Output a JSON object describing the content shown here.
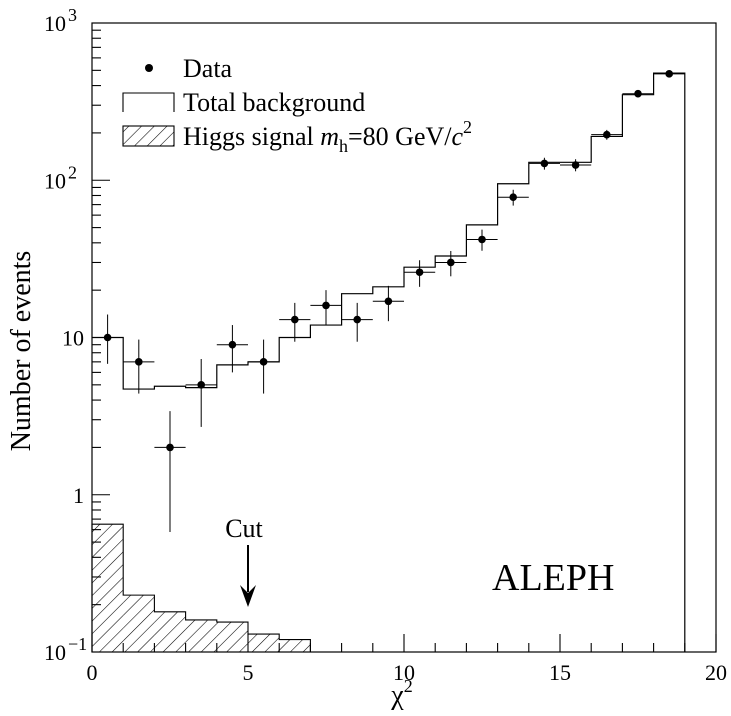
{
  "chart_data": {
    "type": "histogram",
    "title": "",
    "xlabel": "χ",
    "xlabel_sup": "2",
    "ylabel": "Number of events",
    "x_range": [
      0,
      20
    ],
    "y_range": [
      0.1,
      1000
    ],
    "y_scale": "log",
    "grid": false,
    "x_ticks": [
      {
        "v": 0,
        "label": "0"
      },
      {
        "v": 5,
        "label": "5"
      },
      {
        "v": 10,
        "label": "10"
      },
      {
        "v": 15,
        "label": "15"
      },
      {
        "v": 20,
        "label": "20"
      }
    ],
    "y_ticks": [
      {
        "v": 0.1,
        "base": "10",
        "exp": "−1"
      },
      {
        "v": 1,
        "base": "1",
        "exp": ""
      },
      {
        "v": 10,
        "base": "10",
        "exp": ""
      },
      {
        "v": 100,
        "base": "10",
        "exp": "2"
      },
      {
        "v": 1000,
        "base": "10",
        "exp": "3"
      }
    ],
    "bin_edges": [
      0,
      1,
      2,
      3,
      4,
      5,
      6,
      7,
      8,
      9,
      10,
      11,
      12,
      13,
      14,
      15,
      16,
      17,
      18,
      19
    ],
    "series": [
      {
        "name": "Data",
        "style": "points",
        "x": [
          0.5,
          1.5,
          2.5,
          3.5,
          4.5,
          5.5,
          6.5,
          7.5,
          8.5,
          9.5,
          10.5,
          11.5,
          12.5,
          13.5,
          14.5,
          15.5,
          16.5,
          17.5,
          18.5
        ],
        "values": [
          10,
          7,
          2,
          5,
          9,
          7,
          13,
          16,
          13,
          17,
          26,
          30,
          42,
          78,
          128,
          125,
          195,
          355,
          475
        ],
        "err_low": [
          6.8,
          4.4,
          0.58,
          2.7,
          6.0,
          4.4,
          9.4,
          12.0,
          9.4,
          12.7,
          21.0,
          24.5,
          35.6,
          69.0,
          116.8,
          114.0,
          181.0,
          336.0,
          453.0
        ],
        "err_high": [
          14.0,
          9.7,
          3.4,
          7.3,
          12.0,
          9.7,
          16.6,
          20.0,
          16.6,
          21.3,
          31.0,
          35.5,
          48.5,
          87.0,
          139.0,
          136.0,
          209.0,
          374.0,
          497.0
        ]
      },
      {
        "name": "Total background",
        "style": "step",
        "values": [
          10,
          4.7,
          4.9,
          4.8,
          6.7,
          7.0,
          10,
          12,
          19,
          21,
          28,
          33,
          52,
          95,
          130,
          130,
          190,
          350,
          480
        ]
      },
      {
        "name": "Higgs signal",
        "style": "hatched",
        "x_max": 7,
        "values": [
          0.65,
          0.23,
          0.18,
          0.16,
          0.155,
          0.13,
          0.12
        ]
      }
    ],
    "legend": {
      "position": "top-left",
      "data_label": "Data",
      "bkg_label": "Total background",
      "sig_label_pre": "Higgs signal ",
      "sig_label_m": "m",
      "sig_label_sub": "h",
      "sig_label_post": "=80 GeV/",
      "sig_label_c": "c",
      "sig_label_exp": "2"
    },
    "annotations": {
      "cut_label": "Cut",
      "cut_x": 5,
      "experiment": "ALEPH"
    }
  }
}
